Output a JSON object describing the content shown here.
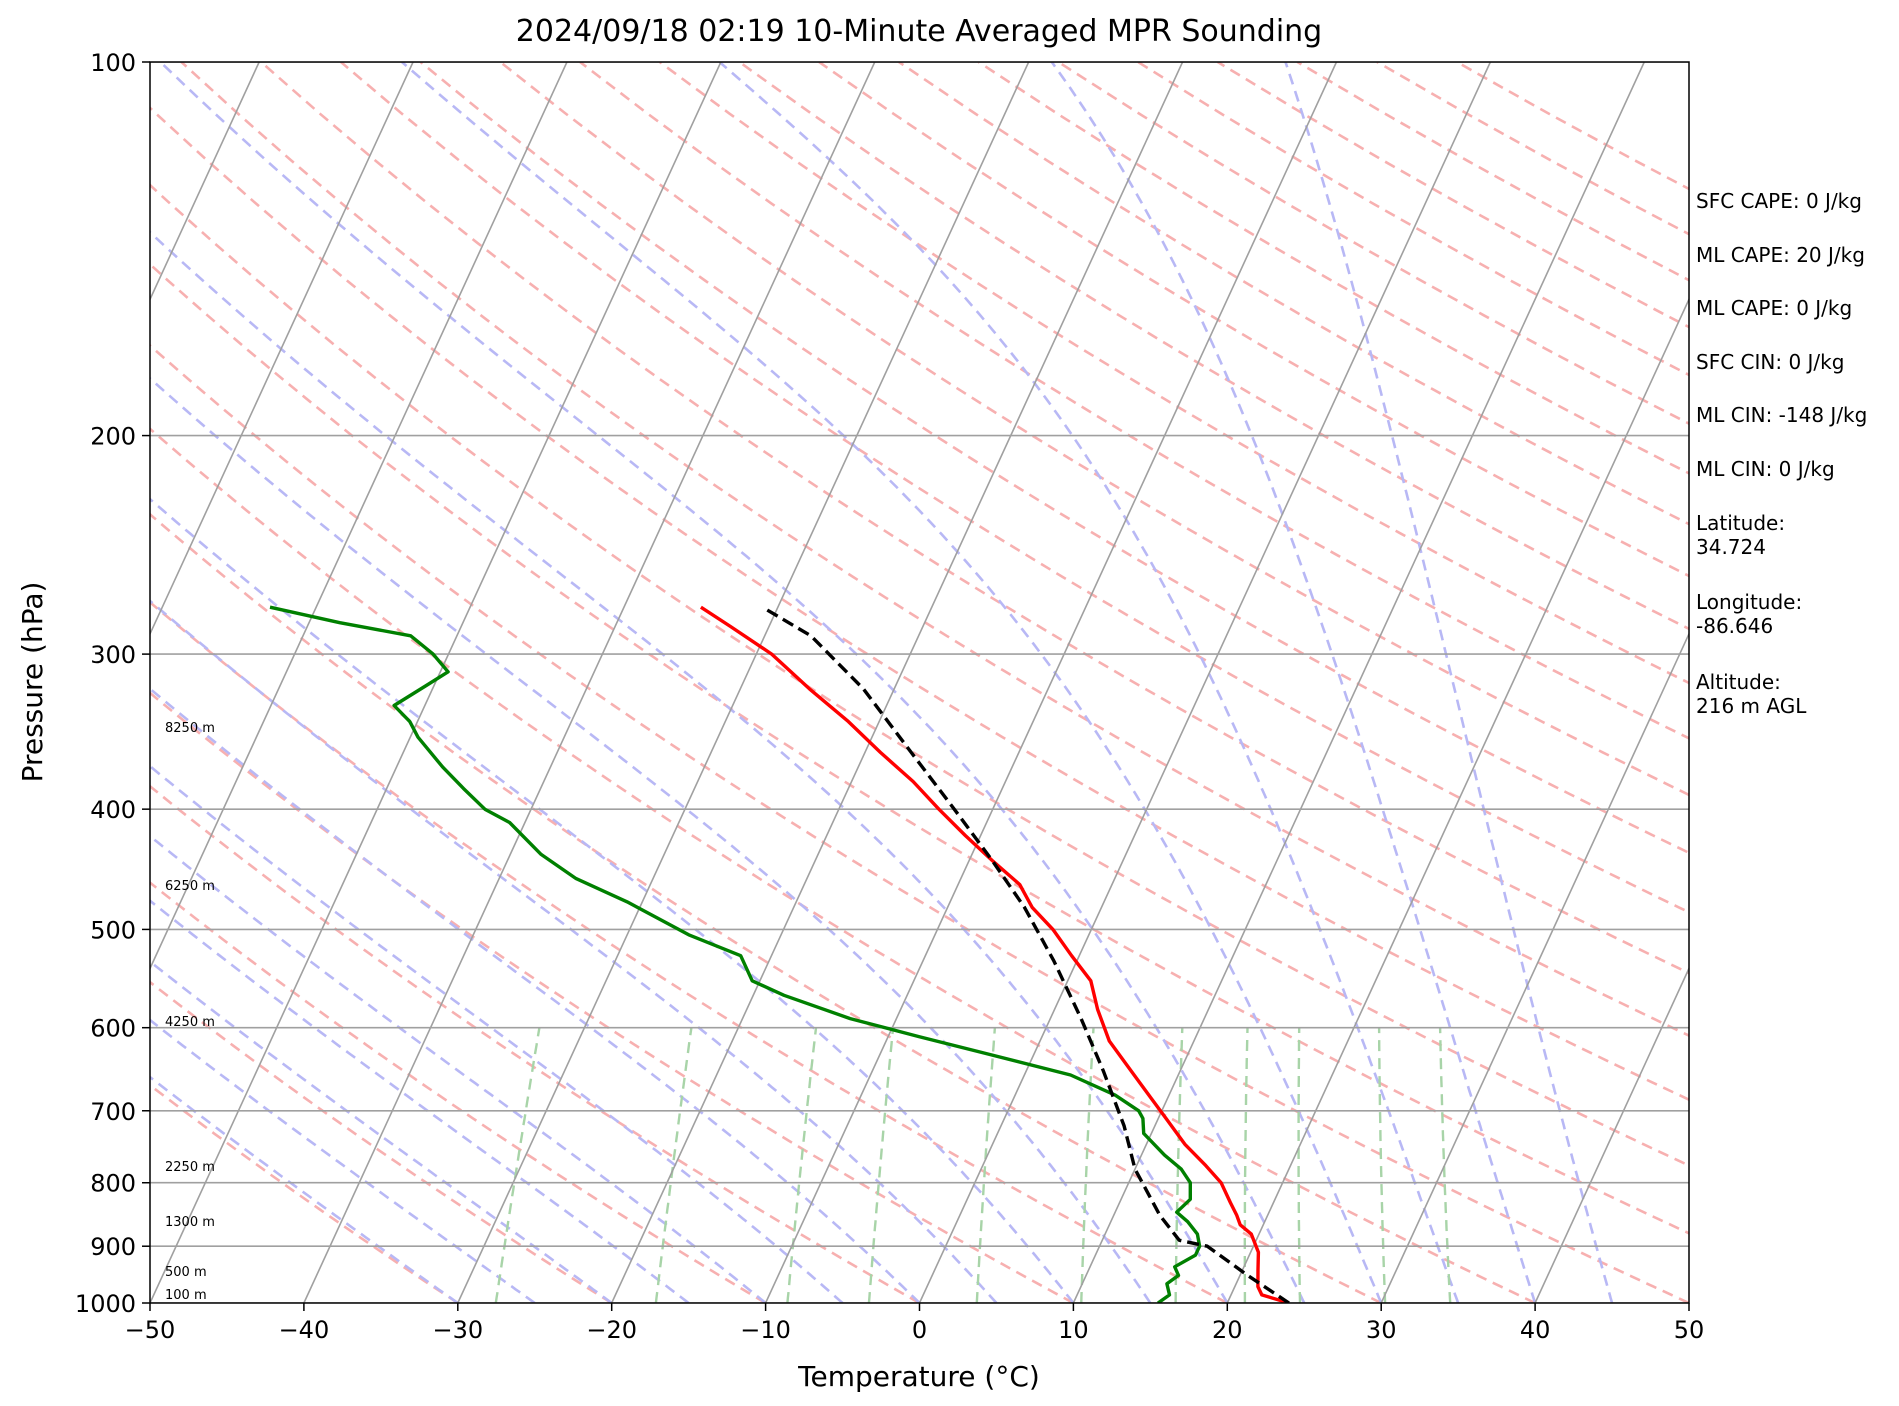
{
  "chart_data": {
    "type": "line",
    "title": "2024/09/18 02:19 10-Minute Averaged MPR Sounding",
    "xlabel": "Temperature (°C)",
    "ylabel": "Pressure (hPa)",
    "xlim": [
      -50,
      50
    ],
    "ylim": [
      1000,
      100
    ],
    "yscale": "log",
    "xticks": [
      -50,
      -40,
      -30,
      -20,
      -10,
      0,
      10,
      20,
      30,
      40,
      50
    ],
    "xtick_labels": [
      "−50",
      "−40",
      "−30",
      "−20",
      "−10",
      "0",
      "10",
      "20",
      "30",
      "40",
      "50"
    ],
    "yticks": [
      1000,
      900,
      800,
      700,
      600,
      500,
      400,
      300,
      200,
      100
    ],
    "ytick_labels": [
      "1000",
      "900",
      "800",
      "700",
      "600",
      "500",
      "400",
      "300",
      "200",
      "100"
    ],
    "grid": true,
    "skew": true,
    "series": [
      {
        "id": "temperature",
        "color": "#ff0000",
        "points": [
          [
            24.0,
            1000
          ],
          [
            22.0,
            985
          ],
          [
            21.5,
            970
          ],
          [
            21.0,
            940
          ],
          [
            20.5,
            910
          ],
          [
            19.5,
            880
          ],
          [
            18.5,
            865
          ],
          [
            18.0,
            850
          ],
          [
            17.2,
            830
          ],
          [
            16.0,
            800
          ],
          [
            14.5,
            775
          ],
          [
            12.5,
            745
          ],
          [
            10.5,
            710
          ],
          [
            9.0,
            685
          ],
          [
            6.8,
            650
          ],
          [
            4.5,
            615
          ],
          [
            2.8,
            580
          ],
          [
            1.5,
            550
          ],
          [
            -0.5,
            525
          ],
          [
            -2.5,
            500
          ],
          [
            -4.5,
            480
          ],
          [
            -6.0,
            460
          ],
          [
            -8.5,
            440
          ],
          [
            -11.0,
            420
          ],
          [
            -13.5,
            400
          ],
          [
            -16.0,
            380
          ],
          [
            -19.0,
            360
          ],
          [
            -22.0,
            340
          ],
          [
            -25.5,
            320
          ],
          [
            -29.0,
            300
          ],
          [
            -32.5,
            285
          ],
          [
            -35.0,
            275
          ]
        ]
      },
      {
        "id": "dewpoint",
        "color": "#008000",
        "points": [
          [
            15.5,
            1000
          ],
          [
            16.0,
            985
          ],
          [
            15.5,
            965
          ],
          [
            16.0,
            950
          ],
          [
            15.5,
            935
          ],
          [
            16.5,
            915
          ],
          [
            16.5,
            900
          ],
          [
            16.0,
            880
          ],
          [
            15.0,
            860
          ],
          [
            14.0,
            845
          ],
          [
            14.5,
            825
          ],
          [
            14.0,
            800
          ],
          [
            13.0,
            780
          ],
          [
            11.5,
            760
          ],
          [
            9.5,
            730
          ],
          [
            9.0,
            710
          ],
          [
            8.5,
            700
          ],
          [
            6.5,
            680
          ],
          [
            3.0,
            655
          ],
          [
            -3.0,
            630
          ],
          [
            -8.0,
            610
          ],
          [
            -13.0,
            590
          ],
          [
            -18.0,
            565
          ],
          [
            -20.5,
            550
          ],
          [
            -22.0,
            525
          ],
          [
            -26.0,
            505
          ],
          [
            -31.0,
            475
          ],
          [
            -35.0,
            455
          ],
          [
            -38.0,
            435
          ],
          [
            -41.0,
            410
          ],
          [
            -43.0,
            400
          ],
          [
            -45.0,
            385
          ],
          [
            -47.0,
            370
          ],
          [
            -49.5,
            350
          ],
          [
            -50.5,
            340
          ],
          [
            -52.0,
            330
          ],
          [
            -50.5,
            318
          ],
          [
            -49.5,
            310
          ],
          [
            -51.0,
            300
          ],
          [
            -53.0,
            290
          ],
          [
            -58.0,
            283
          ],
          [
            -63.0,
            275
          ]
        ]
      },
      {
        "id": "parcel-profile",
        "color": "#000000",
        "dashed": true,
        "points": [
          [
            24.0,
            1000
          ],
          [
            20.5,
            950
          ],
          [
            17.0,
            900
          ],
          [
            15.0,
            890
          ],
          [
            13.0,
            850
          ],
          [
            10.0,
            780
          ],
          [
            8.0,
            720
          ],
          [
            5.0,
            650
          ],
          [
            2.0,
            590
          ],
          [
            -1.5,
            530
          ],
          [
            -5.0,
            480
          ],
          [
            -8.5,
            440
          ],
          [
            -12.5,
            400
          ],
          [
            -17.0,
            360
          ],
          [
            -22.0,
            320
          ],
          [
            -27.0,
            290
          ],
          [
            -31.0,
            275
          ]
        ]
      }
    ],
    "height_labels": [
      {
        "text": "100 m",
        "pressure": 988
      },
      {
        "text": "500 m",
        "pressure": 945
      },
      {
        "text": "1300 m",
        "pressure": 862
      },
      {
        "text": "2250 m",
        "pressure": 778
      },
      {
        "text": "4250 m",
        "pressure": 595
      },
      {
        "text": "6250 m",
        "pressure": 462
      },
      {
        "text": "8250 m",
        "pressure": 345
      }
    ],
    "side_text": [
      "SFC CAPE: 0 J/kg",
      "ML CAPE: 20 J/kg",
      "ML CAPE: 0 J/kg",
      "SFC CIN: 0 J/kg",
      "ML CIN: -148 J/kg",
      "ML CIN: 0 J/kg",
      "Latitude:\n34.724",
      "Longitude:\n-86.646",
      "Altitude:\n216 m AGL"
    ],
    "reference_line_colors": {
      "isotherm": "#a0a0a0",
      "dry_adiabat": "#f7b0b0",
      "moist_adiabat": "#b8b8f5",
      "mixing_ratio": "#a8d4a8"
    }
  }
}
